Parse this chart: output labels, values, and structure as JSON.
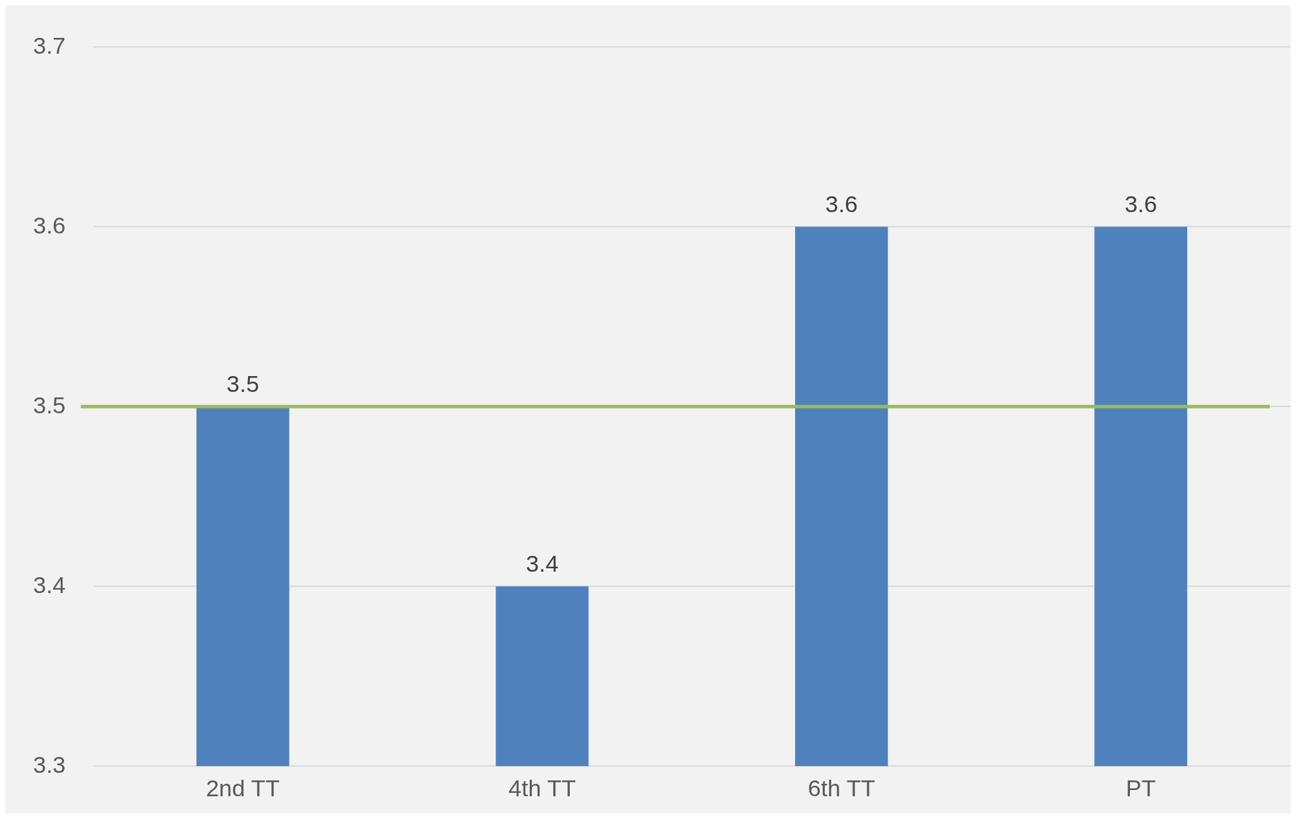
{
  "chart_data": {
    "type": "bar",
    "categories": [
      "2nd TT",
      "4th TT",
      "6th TT",
      "PT"
    ],
    "values": [
      3.5,
      3.4,
      3.6,
      3.6
    ],
    "color": "#4f81bd",
    "ylim": [
      3.3,
      3.7
    ],
    "yticks": [
      3.3,
      3.4,
      3.5,
      3.6,
      3.7
    ],
    "grid": "y",
    "data_labels": true,
    "legend": false,
    "ref_lines": [
      {
        "axis": "y",
        "value": 3.5,
        "color": "#9bbb59"
      }
    ]
  }
}
